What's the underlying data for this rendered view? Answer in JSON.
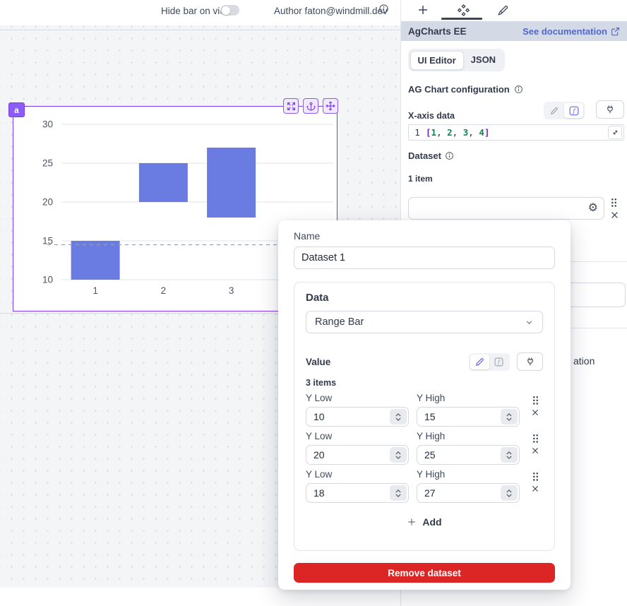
{
  "topbar": {
    "hide_label": "Hide bar on view",
    "author": "Author faton@windmill.dev"
  },
  "component": {
    "badge": "a"
  },
  "chart_data": {
    "type": "bar",
    "subtype": "range-bar",
    "x": [
      "1",
      "2",
      "3",
      "4"
    ],
    "yticks": [
      10,
      15,
      20,
      25,
      30
    ],
    "ylim": [
      10,
      30
    ],
    "series": [
      {
        "name": "Dataset 1",
        "ranges": [
          [
            10,
            15
          ],
          [
            20,
            25
          ],
          [
            18,
            27
          ]
        ]
      }
    ],
    "dashed_line_y": 14.5,
    "bar_color": "#6a7ce1",
    "grid": true,
    "legend": "none"
  },
  "sidebar": {
    "title": "AgCharts EE",
    "doc_link": "See documentation",
    "tabs": [
      {
        "label": "UI Editor"
      },
      {
        "label": "JSON"
      }
    ],
    "config_label": "AG Chart configuration",
    "xaxis": {
      "label": "X-axis data",
      "line_no": "1",
      "tokens": {
        "open": "[",
        "n1": "1",
        "n2": "2",
        "n3": "3",
        "n4": "4",
        "comma": ", ",
        "close": "]"
      }
    },
    "dataset": {
      "label": "Dataset",
      "count": "1 item"
    },
    "fragment": "ation"
  },
  "modal": {
    "name_label": "Name",
    "name_value": "Dataset 1",
    "data_label": "Data",
    "data_type": "Range Bar",
    "value_label": "Value",
    "items_count": "3 items",
    "items": [
      {
        "low_label": "Y Low",
        "low": "10",
        "high_label": "Y High",
        "high": "15"
      },
      {
        "low_label": "Y Low",
        "low": "20",
        "high_label": "Y High",
        "high": "25"
      },
      {
        "low_label": "Y Low",
        "low": "18",
        "high_label": "Y High",
        "high": "27"
      }
    ],
    "add_label": "Add",
    "remove_label": "Remove dataset"
  },
  "colors": {
    "accent_purple": "#7c3aed",
    "bar": "#6a7ce1",
    "link_blue": "#5168c9",
    "danger": "#dc2626",
    "band_bg": "#d4dae5"
  }
}
